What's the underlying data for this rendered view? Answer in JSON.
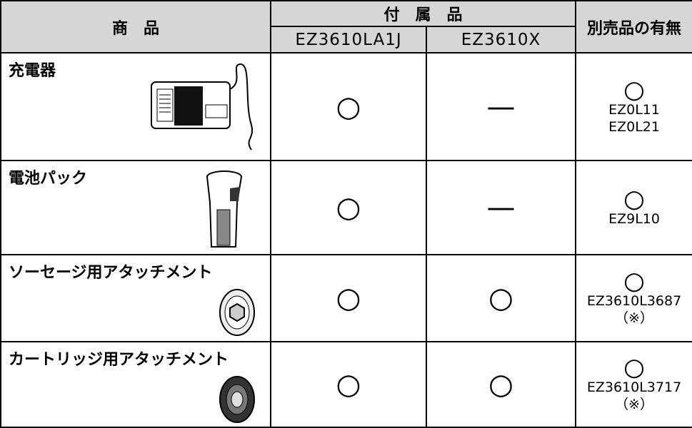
{
  "table": {
    "header": {
      "product": "商　品",
      "accessories": "付　属　品",
      "models": [
        "EZ3610LA1J",
        "EZ3610X"
      ],
      "separate": "別売品の有無"
    },
    "rows": [
      {
        "name": "充電器",
        "cells": [
          "○",
          "—"
        ],
        "separate": {
          "mark": "○",
          "parts": [
            "EZ0L11",
            "EZ0L21"
          ]
        }
      },
      {
        "name": "電池パック",
        "cells": [
          "○",
          "—"
        ],
        "separate": {
          "mark": "○",
          "parts": [
            "EZ9L10"
          ]
        }
      },
      {
        "name": "ソーセージ用アタッチメント",
        "cells": [
          "○",
          "○"
        ],
        "separate": {
          "mark": "○",
          "parts": [
            "EZ3610L3687",
            "（※）"
          ]
        }
      },
      {
        "name": "カートリッジ用アタッチメント",
        "cells": [
          "○",
          "○"
        ],
        "separate": {
          "mark": "○",
          "parts": [
            "EZ3610L3717",
            "（※）"
          ]
        }
      }
    ]
  }
}
